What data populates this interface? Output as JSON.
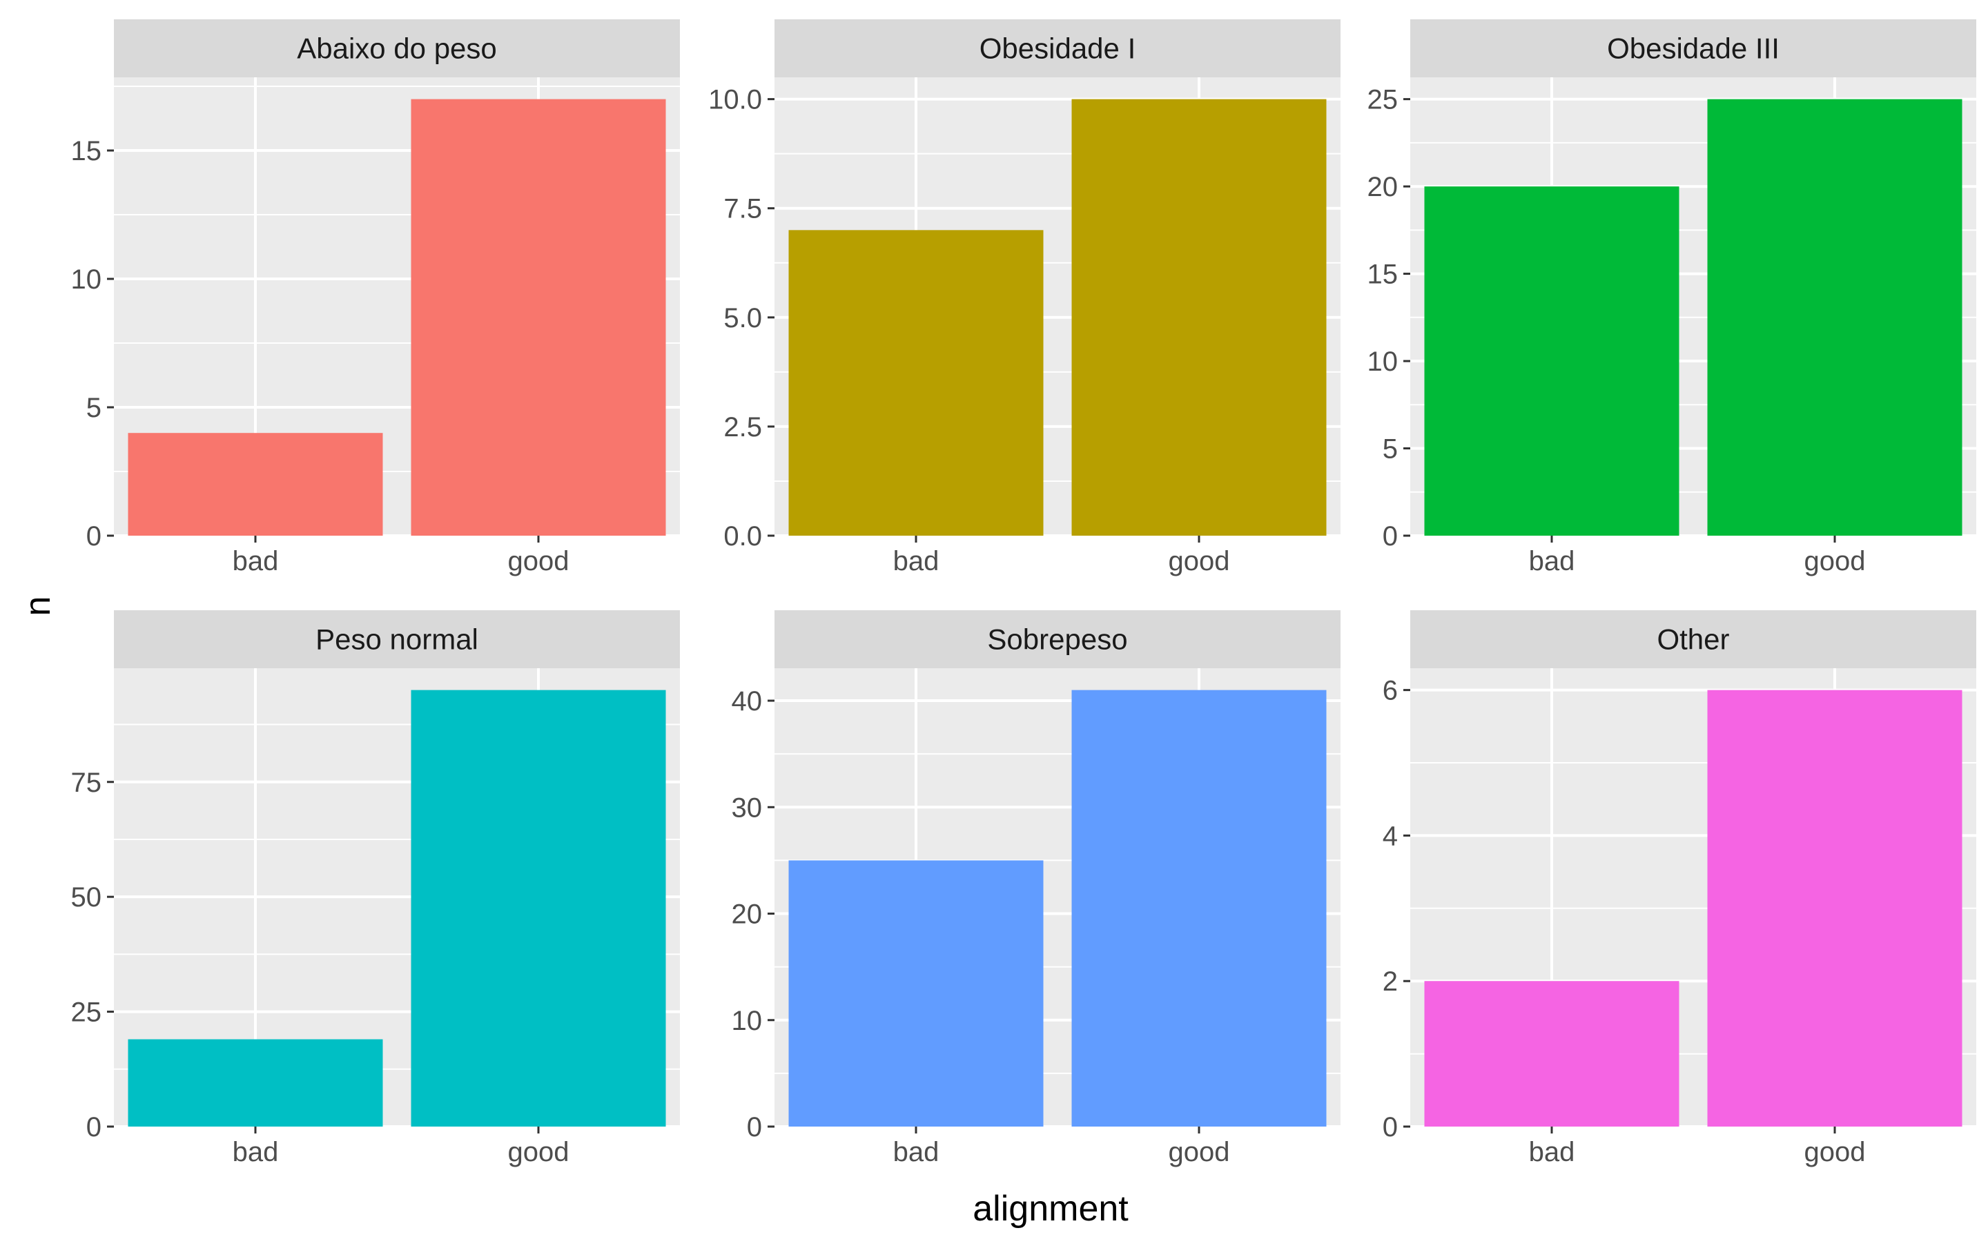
{
  "chart_data": {
    "type": "bar",
    "xlabel": "alignment",
    "ylabel": "n",
    "categories": [
      "bad",
      "good"
    ],
    "grid": true,
    "legend": "none",
    "facets": [
      {
        "panel": "Abaixo do peso",
        "values": [
          4,
          17
        ],
        "color": "#F8766D",
        "ylim": [
          0,
          17.85
        ],
        "ticks": [
          0,
          5,
          10,
          15
        ],
        "tick_labels": [
          "0",
          "5",
          "10",
          "15"
        ]
      },
      {
        "panel": "Obesidade I",
        "values": [
          7,
          10
        ],
        "color": "#B79F00",
        "ylim": [
          0,
          10.5
        ],
        "ticks": [
          0,
          2.5,
          5,
          7.5,
          10
        ],
        "tick_labels": [
          "0.0",
          "2.5",
          "5.0",
          "7.5",
          "10.0"
        ]
      },
      {
        "panel": "Obesidade III",
        "values": [
          20,
          25
        ],
        "color": "#00BA38",
        "ylim": [
          0,
          26.25
        ],
        "ticks": [
          0,
          5,
          10,
          15,
          20,
          25
        ],
        "tick_labels": [
          "0",
          "5",
          "10",
          "15",
          "20",
          "25"
        ]
      },
      {
        "panel": "Peso normal",
        "values": [
          19,
          95
        ],
        "color": "#00BFC4",
        "ylim": [
          0,
          99.75
        ],
        "ticks": [
          0,
          25,
          50,
          75
        ],
        "tick_labels": [
          "0",
          "25",
          "50",
          "75"
        ]
      },
      {
        "panel": "Sobrepeso",
        "values": [
          25,
          41
        ],
        "color": "#619CFF",
        "ylim": [
          0,
          43.05
        ],
        "ticks": [
          0,
          10,
          20,
          30,
          40
        ],
        "tick_labels": [
          "0",
          "10",
          "20",
          "30",
          "40"
        ]
      },
      {
        "panel": "Other",
        "values": [
          2,
          6
        ],
        "color": "#F564E3",
        "ylim": [
          0,
          6.3
        ],
        "ticks": [
          0,
          2,
          4,
          6
        ],
        "tick_labels": [
          "0",
          "2",
          "4",
          "6"
        ]
      }
    ]
  }
}
